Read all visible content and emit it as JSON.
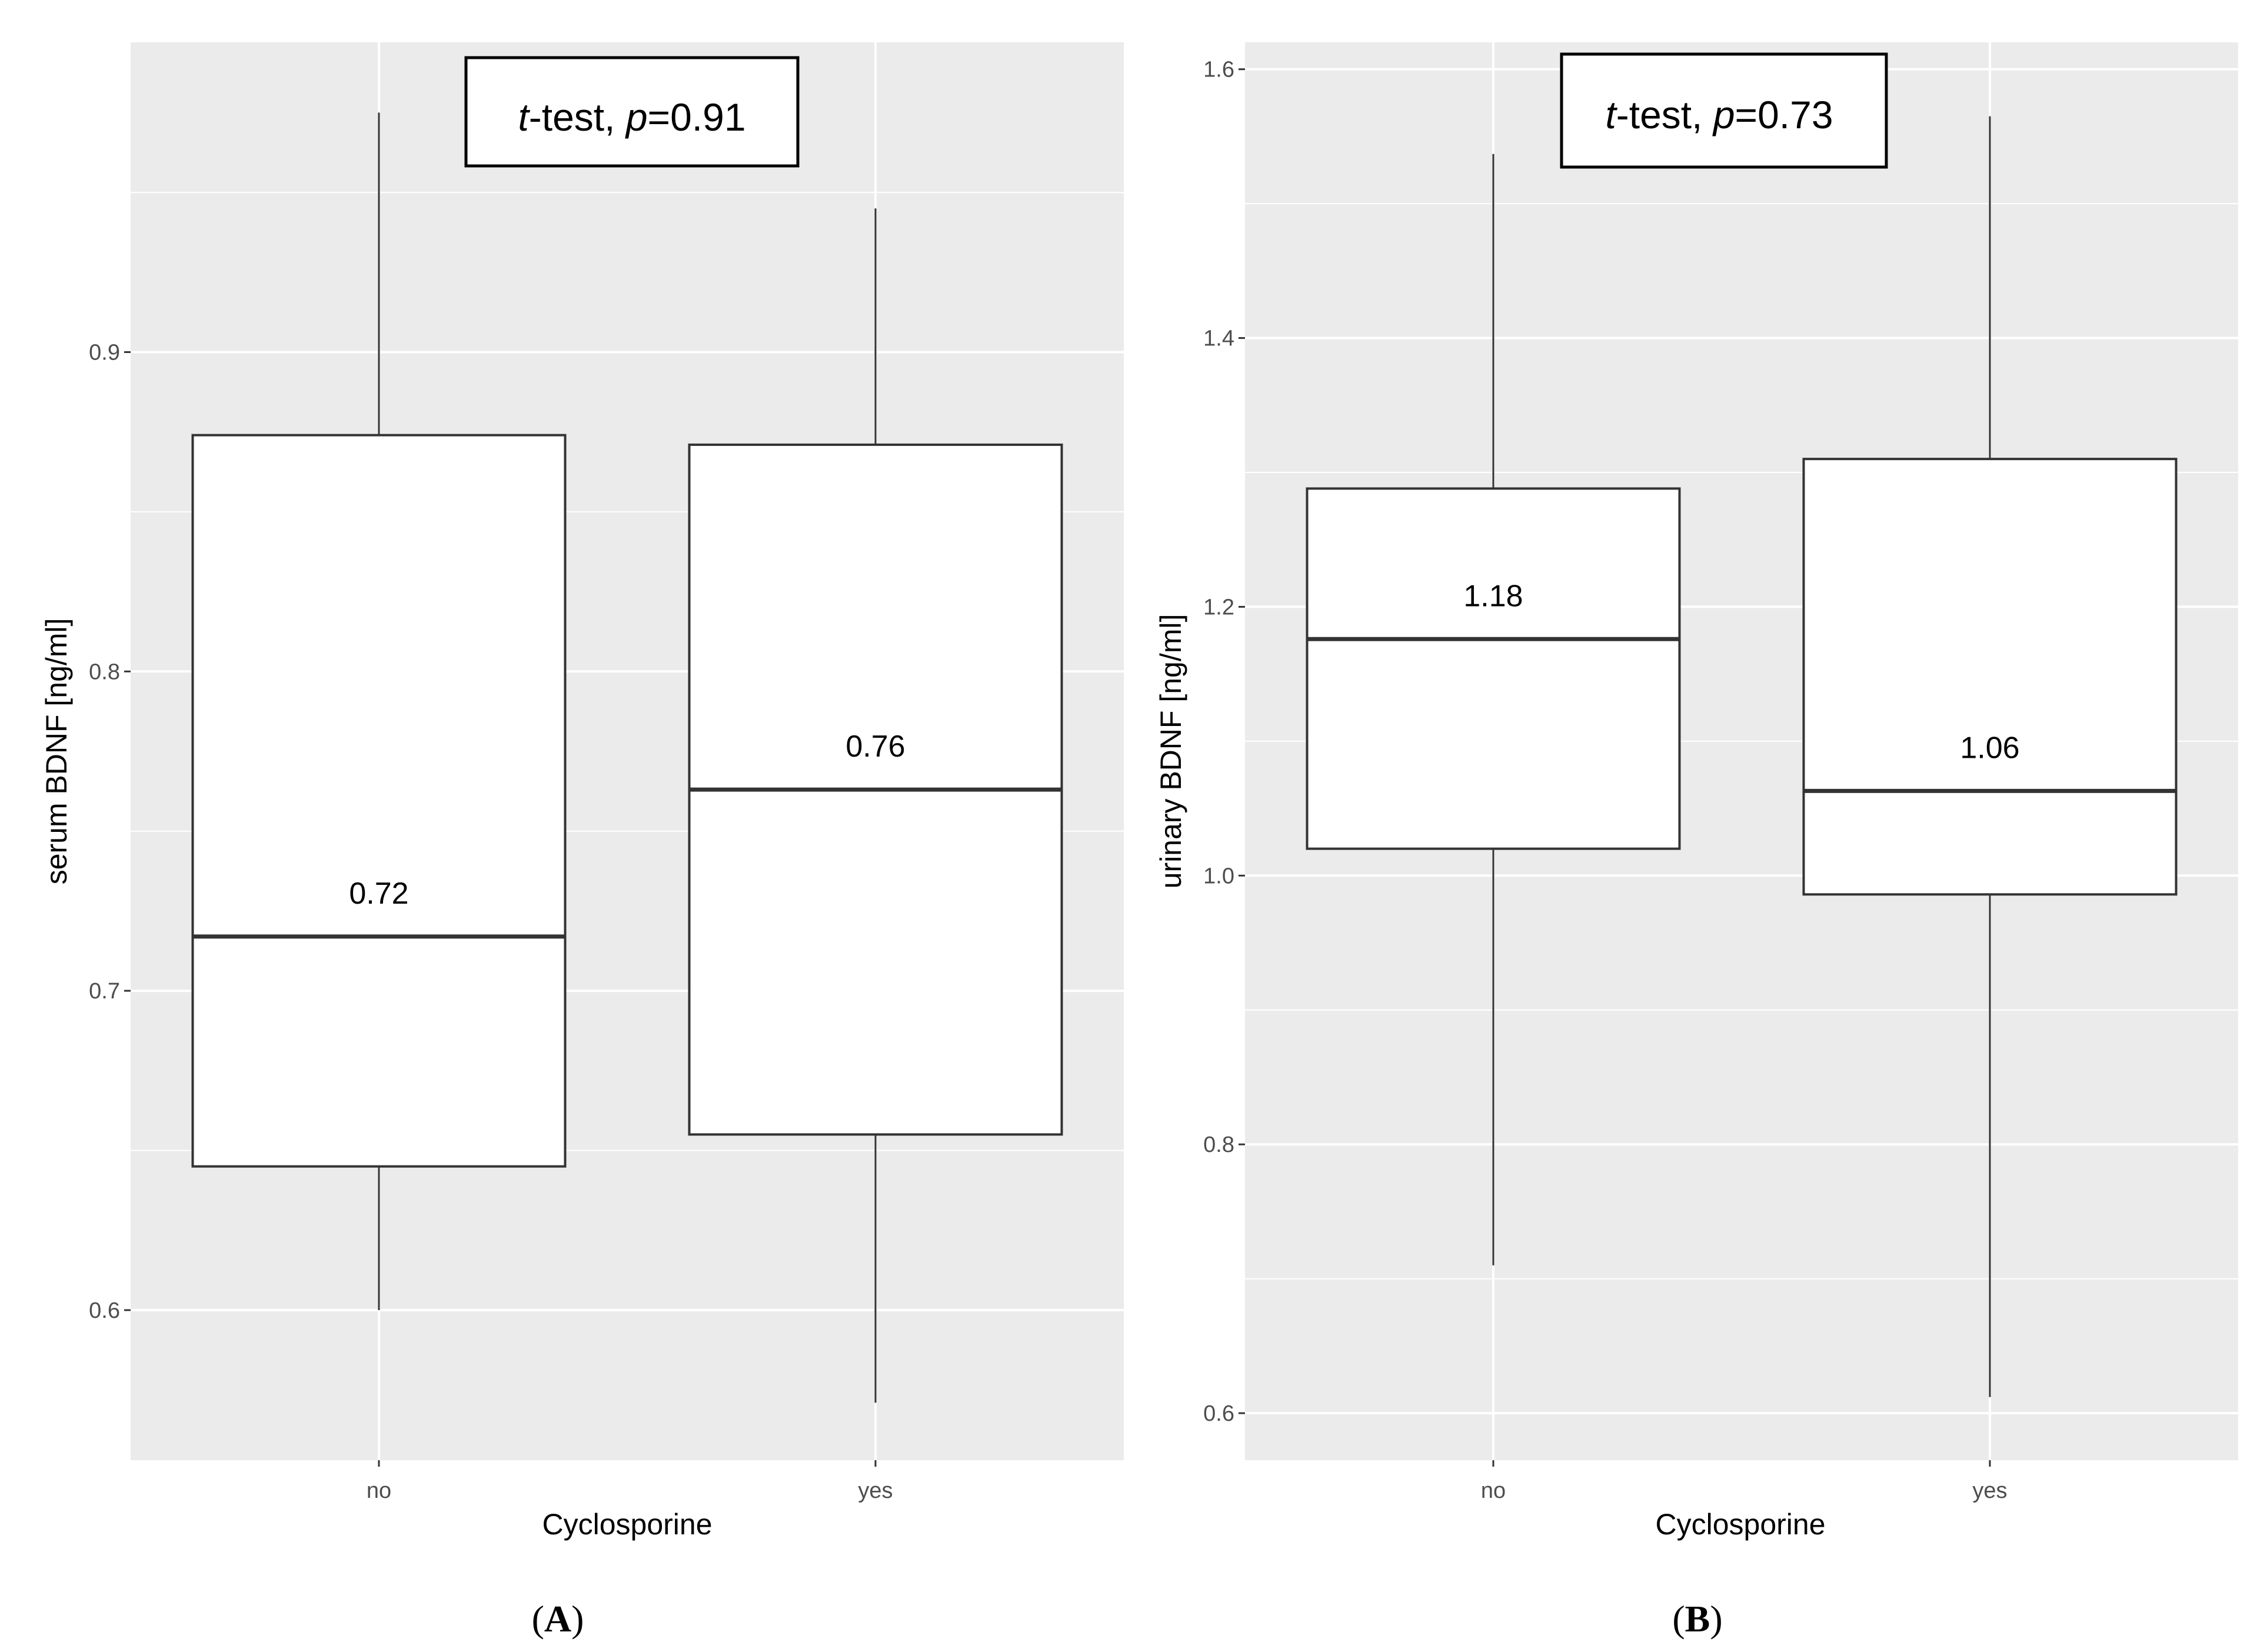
{
  "chart_data": [
    {
      "type": "boxplot",
      "panel_label_open": "(",
      "panel_label": "A",
      "panel_label_close": ")",
      "xlabel": "Cyclosporine",
      "ylabel": "serum BDNF [ng/ml]",
      "categories": [
        "no",
        "yes"
      ],
      "ylim": [
        0.553,
        0.997
      ],
      "yticks": [
        0.6,
        0.7,
        0.8,
        0.9
      ],
      "ytick_labels": [
        "0.6",
        "0.7",
        "0.8",
        "0.9"
      ],
      "grid": true,
      "boxes": [
        {
          "category": "no",
          "whisker_low": 0.6,
          "q1": 0.645,
          "median": 0.717,
          "q3": 0.874,
          "whisker_high": 0.975,
          "median_label": "0.72"
        },
        {
          "category": "yes",
          "whisker_low": 0.571,
          "q1": 0.655,
          "median": 0.763,
          "q3": 0.871,
          "whisker_high": 0.945,
          "median_label": "0.76"
        }
      ],
      "annotation": {
        "italic_1": "t",
        "text_1": "-test, ",
        "italic_2": "p",
        "text_2": "=0.91"
      }
    },
    {
      "type": "boxplot",
      "panel_label_open": "(",
      "panel_label": "B",
      "panel_label_close": ")",
      "xlabel": "Cyclosporine",
      "ylabel": "urinary BDNF [ng/ml]",
      "categories": [
        "no",
        "yes"
      ],
      "ylim": [
        0.565,
        1.62
      ],
      "yticks": [
        0.6,
        0.8,
        1.0,
        1.2,
        1.4,
        1.6
      ],
      "ytick_labels": [
        "0.6",
        "0.8",
        "1.0",
        "1.2",
        "1.4",
        "1.6"
      ],
      "grid": true,
      "boxes": [
        {
          "category": "no",
          "whisker_low": 0.71,
          "q1": 1.02,
          "median": 1.176,
          "q3": 1.288,
          "whisker_high": 1.537,
          "median_label": "1.18"
        },
        {
          "category": "yes",
          "whisker_low": 0.612,
          "q1": 0.986,
          "median": 1.063,
          "q3": 1.31,
          "whisker_high": 1.565,
          "median_label": "1.06"
        }
      ],
      "annotation": {
        "italic_1": "t",
        "text_1": "-test, ",
        "italic_2": "p",
        "text_2": "=0.73"
      }
    }
  ]
}
